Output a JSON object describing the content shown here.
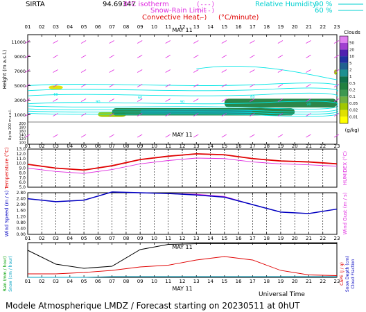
{
  "header": {
    "station": "SIRTA",
    "station_code": "94.69347",
    "legend": {
      "isotherm": "0°C isotherm",
      "snow_rain": "Snow-Rain Limit",
      "convective": "Convective Heat.",
      "convective_unit": "(°C/minute)",
      "rh_label": "Relative Humidity",
      "rh_90": "90 %",
      "rh_60": "60 %"
    }
  },
  "footer": {
    "universal_time": "Universal Time",
    "bottom_title": "Modele Atmospherique LMDZ / Forecast starting on 20230511 at 0hUT"
  },
  "colors": {
    "relative_humidity": "#00e5e5",
    "temperature": "#e00000",
    "humidex": "#e030e0",
    "wind_speed": "#0000c0",
    "wind_gust": "#e030e0",
    "rain": "#000000",
    "snow": "#00a0c0",
    "cape": "#e00000",
    "isotherm": "#e030e0"
  },
  "chart_data": [
    {
      "id": "clouds",
      "type": "heatmap",
      "date_label": "MAY 11",
      "x_ticks": [
        "01",
        "02",
        "03",
        "04",
        "05",
        "06",
        "07",
        "08",
        "09",
        "10",
        "11",
        "12",
        "13",
        "14",
        "15",
        "16",
        "17",
        "18",
        "19",
        "20",
        "21",
        "22",
        "23"
      ],
      "ylabel": "Height (m a.s.l.)",
      "ylabel_low": "Up to 200 m a.s.l.",
      "y_ticks": [
        "11000",
        "9000",
        "7000",
        "5000",
        "3000",
        "1000"
      ],
      "y_ticks_low": [
        "200",
        "180",
        "160",
        "140",
        "120",
        "100"
      ],
      "colorbar": {
        "title": "Clouds",
        "unit": "(g/kg)",
        "levels": [
          "0.01",
          "0.02",
          "0.05",
          "0.1",
          "0.2",
          "0.5",
          "1",
          "2",
          "5",
          "10",
          "20",
          "50"
        ],
        "colors": [
          "#ffff00",
          "#e0e000",
          "#a0c800",
          "#70b040",
          "#3d9850",
          "#208040",
          "#10704a",
          "#1e9090",
          "#206090",
          "#2030a0",
          "#5020b0",
          "#a040d0",
          "#e080f0"
        ]
      },
      "cloud_cells": [
        {
          "hours": [
            6,
            8
          ],
          "alt_km": [
            0.7,
            1.4
          ],
          "level": 0.05
        },
        {
          "hours": [
            7,
            20
          ],
          "alt_km": [
            0.9,
            1.9
          ],
          "level": 0.5
        },
        {
          "hours": [
            9,
            17
          ],
          "alt_km": [
            1.1,
            1.7
          ],
          "level": 2
        },
        {
          "hours": [
            15,
            23
          ],
          "alt_km": [
            2.0,
            3.2
          ],
          "level": 0.5
        },
        {
          "hours": [
            2.5,
            3.5
          ],
          "alt_km": [
            4.5,
            5.0
          ],
          "level": 0.02
        },
        {
          "hours": [
            22.8,
            23
          ],
          "alt_km": [
            6.5,
            7.2
          ],
          "level": 0.05
        }
      ],
      "rh_labels": [
        "60",
        "90"
      ]
    },
    {
      "id": "temperature",
      "type": "line",
      "date_label": "MAY 11",
      "x_ticks": [
        "01",
        "02",
        "03",
        "04",
        "05",
        "06",
        "07",
        "08",
        "09",
        "10",
        "11",
        "12",
        "13",
        "14",
        "15",
        "16",
        "17",
        "18",
        "19",
        "20",
        "21",
        "22",
        "23"
      ],
      "ylabel": "Temperature (°C)",
      "ylabel_right": "HUMIDEX (°C)",
      "y_ticks": [
        "13.0",
        "12.0",
        "11.0",
        "10.0",
        "9.0",
        "8.0",
        "7.0",
        "6.0",
        "5.0"
      ],
      "ylim": [
        5,
        13
      ],
      "x": [
        1,
        3,
        5,
        7,
        9,
        11,
        13,
        15,
        17,
        19,
        21,
        23
      ],
      "series": [
        {
          "values": [
            9.8,
            9.0,
            8.6,
            9.5,
            10.8,
            11.5,
            12.0,
            11.8,
            11.0,
            10.5,
            10.3,
            9.9
          ]
        },
        {
          "values": [
            9.0,
            8.3,
            7.9,
            8.7,
            9.9,
            10.6,
            11.1,
            11.0,
            10.3,
            9.9,
            9.7,
            9.4
          ]
        }
      ]
    },
    {
      "id": "wind",
      "type": "line",
      "x_ticks": [
        "01",
        "02",
        "03",
        "04",
        "05",
        "06",
        "07",
        "08",
        "09",
        "10",
        "11",
        "12",
        "13",
        "14",
        "15",
        "16",
        "17",
        "18",
        "19",
        "20",
        "21",
        "22",
        "23"
      ],
      "ylabel": "Wind Speed (m / s)",
      "ylabel_right": "Wind Gust (m / s)",
      "y_ticks": [
        "2.80",
        "2.40",
        "2.00",
        "1.60",
        "1.20",
        "0.80",
        "0.40",
        "0.00"
      ],
      "ylim": [
        0,
        2.8
      ],
      "x": [
        1,
        3,
        5,
        7,
        9,
        11,
        13,
        15,
        17,
        19,
        21,
        23
      ],
      "series": [
        {
          "values": [
            2.4,
            2.2,
            2.3,
            2.85,
            2.8,
            2.75,
            2.65,
            2.5,
            2.0,
            1.5,
            1.4,
            1.7
          ]
        },
        {
          "values": [
            2.4,
            2.2,
            2.3,
            2.85,
            2.8,
            2.75,
            2.7,
            2.55,
            2.0,
            1.5,
            1.4,
            1.7
          ]
        }
      ]
    },
    {
      "id": "precip",
      "type": "line",
      "date_label": "MAY 11",
      "x_ticks": [
        "01",
        "02",
        "03",
        "04",
        "05",
        "06",
        "07",
        "08",
        "09",
        "10",
        "11",
        "12",
        "13",
        "14",
        "15",
        "16",
        "17",
        "18",
        "19",
        "20",
        "21",
        "22",
        "23"
      ],
      "ylabel_left_1": "Rain (mm / hour)",
      "ylabel_left_2": "Snow (cm / hour)",
      "ylabel_right_1": "CAPE (J / g)",
      "ylabel_right_2": "Snow Depth (cm)",
      "ylabel_right_3": "Cloud Fraction",
      "ylim": [
        0,
        1
      ],
      "x": [
        1,
        3,
        5,
        7,
        9,
        11,
        13,
        15,
        17,
        19,
        21,
        23
      ],
      "series": [
        {
          "values": [
            0.78,
            0.38,
            0.26,
            0.32,
            0.8,
            0.95,
            0.97,
            0.97,
            0.97,
            0.97,
            0.97,
            0.97
          ]
        },
        {
          "values": [
            0.0,
            0.0,
            0.0,
            0.02,
            0.02,
            0.02,
            0.02,
            0.02,
            0.02,
            0.02,
            0.02,
            0.02
          ]
        },
        {
          "values": [
            0.1,
            0.1,
            0.14,
            0.2,
            0.3,
            0.35,
            0.5,
            0.6,
            0.5,
            0.2,
            0.07,
            0.05
          ]
        }
      ]
    }
  ]
}
